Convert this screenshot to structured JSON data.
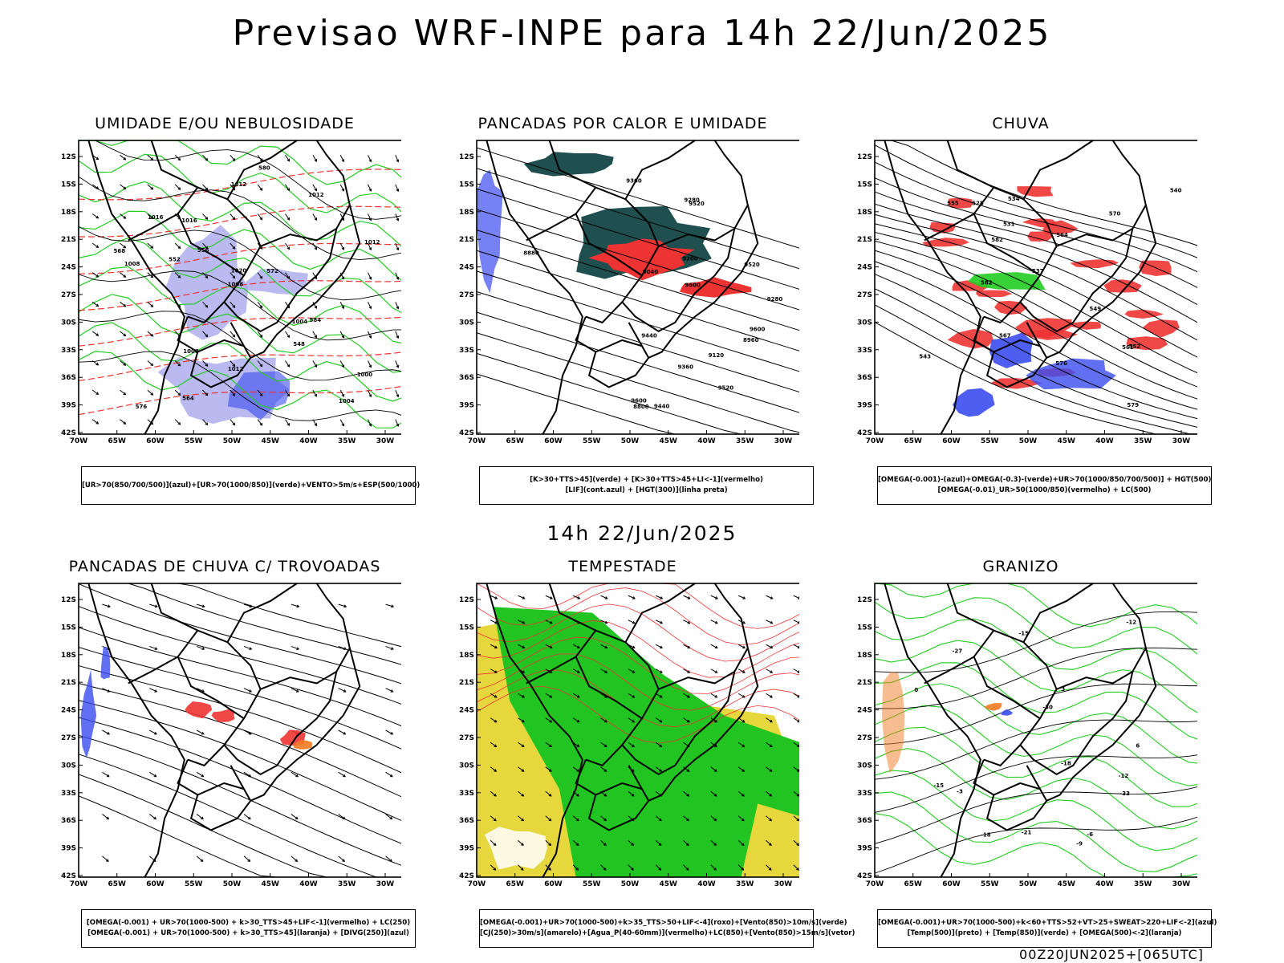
{
  "header": {
    "title": "Previsao WRF-INPE  para 14h 22/Jun/2025",
    "mid_title": "14h 22/Jun/2025",
    "footer": "00Z20JUN2025+[065UTC]"
  },
  "axes": {
    "lat_labels": [
      "12S",
      "15S",
      "18S",
      "21S",
      "24S",
      "27S",
      "30S",
      "33S",
      "36S",
      "39S",
      "42S"
    ],
    "lon_labels": [
      "70W",
      "65W",
      "60W",
      "55W",
      "50W",
      "45W",
      "40W",
      "35W",
      "30W"
    ]
  },
  "colors": {
    "blue": "#3a4cf0",
    "lavender": "#a9a9ee",
    "green": "#22cc22",
    "red": "#ee3333",
    "teal": "#1f4f4f",
    "yellow": "#e6d83c",
    "orange": "#f07a20",
    "black": "#000000"
  },
  "panels": [
    {
      "title": "UMIDADE E/OU NEBULOSIDADE",
      "legend": [
        "[UR>70(850/700/500)](azul)+[UR>70(1000/850)](verde)+VENTO>5m/s+ESP(500/1000)"
      ],
      "labels": [
        "1016",
        "1012",
        "1008",
        "1004",
        "1012",
        "1008",
        "1012",
        "1020",
        "1016",
        "1012",
        "1008",
        "1004",
        "1000",
        "584",
        "580",
        "556",
        "552",
        "548",
        "564",
        "568",
        "572",
        "576"
      ]
    },
    {
      "title": "PANCADAS POR CALOR E UMIDADE",
      "legend": [
        "[K>30+TTS>45](verde) + [K>30+TTS>45+LI<-1](vermelho)",
        "[LIF](cont.azul) + [HGT(300)](linha preta)"
      ],
      "labels": [
        "9600",
        "9600",
        "9600",
        "9520",
        "9440",
        "9520",
        "9440",
        "9360",
        "9360",
        "9280",
        "9200",
        "9120",
        "9040",
        "8960",
        "8880",
        "8800",
        "9280",
        "9520"
      ]
    },
    {
      "title": "CHUVA",
      "legend": [
        "[OMEGA(-0.001)-(azul)+OMEGA(-0.3)-(verde)+UR>70(1000/850/700/500)] + HGT(500)",
        "[OMEGA(-0.01)_UR>50(1000/850)(vermelho) + LC(500)"
      ],
      "labels": [
        "582",
        "579",
        "570",
        "567",
        "576",
        "564",
        "561",
        "552",
        "549",
        "543",
        "540",
        "537",
        "534",
        "531",
        "528",
        "555",
        "582"
      ]
    },
    {
      "title": "PANCADAS DE CHUVA C/ TROVOADAS",
      "legend": [
        "[OMEGA(-0.001) + UR>70(1000-500) + k>30_TTS>45+LIF<-1](vermelho) + LC(250)",
        "[OMEGA(-0.001) + UR>70(1000-500) + k>30_TTS>45](laranja) + [DIVG(250)](azul)"
      ],
      "labels": []
    },
    {
      "title": "TEMPESTADE",
      "legend": [
        "[OMEGA(-0.001)+UR>70(1000-500)+k>35_TTS>50+LIF<-4](roxo)+[Vento(850)>10m/s](verde)",
        "[CJ(250)>30m/s](amarelo)+[Agua_P(40-60mm)](vermelho)+LC(850)+[Vento(850)>15m/s](vetor)"
      ],
      "labels": []
    },
    {
      "title": "GRANIZO",
      "legend": [
        "[OMEGA(-0.001)+UR>70(1000-500)+k<60+TTS>52+VT>25+SWEAT>220+LIF<-2](azul)",
        "[Temp(500)](preto) + [Temp(850)](verde) + [OMEGA(500)<-2](laranja)"
      ],
      "labels": [
        "-12",
        "-15",
        "-18",
        "-21",
        "-27",
        "-30",
        "-33",
        "-12",
        "-15",
        "-18",
        "-9",
        "-6",
        "-3",
        "0",
        "3",
        "6"
      ]
    }
  ]
}
